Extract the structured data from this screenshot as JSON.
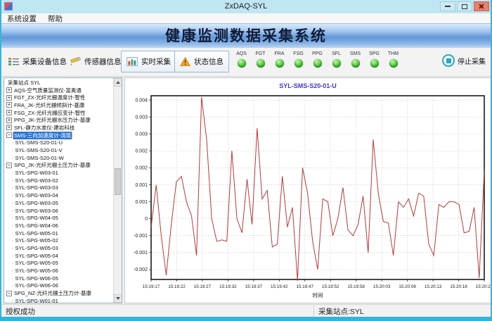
{
  "window": {
    "title": "ZxDAQ-SYL"
  },
  "menu": {
    "items": [
      "系统设置",
      "帮助"
    ]
  },
  "banner": {
    "title": "健康监测数据采集系统"
  },
  "toolbar": {
    "buttons": [
      {
        "label": "采集设备信息"
      },
      {
        "label": "传感器信息"
      },
      {
        "label": "实时采集"
      },
      {
        "label": "状态信息"
      }
    ],
    "channels": [
      "AQS",
      "FGT",
      "FRA",
      "FSG",
      "PPG",
      "SFL",
      "SMS",
      "SPG",
      "THM"
    ],
    "led_color": "#35c135",
    "stop_label": "停止采集"
  },
  "tree": {
    "items": [
      {
        "label": "采集站点 SYL",
        "level": 0,
        "expander": "none"
      },
      {
        "label": "AQS-空气质量监测仪-富奥通",
        "level": 0,
        "expander": "plus"
      },
      {
        "label": "FGT_ZX-光纤光栅温度计-智性",
        "level": 0,
        "expander": "plus"
      },
      {
        "label": "FRA_JK-光纤光栅倾斜计-基康",
        "level": 0,
        "expander": "plus"
      },
      {
        "label": "FSG_ZX-光纤光栅应变计-智性",
        "level": 0,
        "expander": "plus"
      },
      {
        "label": "PPG_JK-光纤光栅水压力计-基康",
        "level": 0,
        "expander": "plus"
      },
      {
        "label": "SFL-静力水准仪-建岩科技",
        "level": 0,
        "expander": "plus"
      },
      {
        "label": "SMS-三向加速度计-清筑",
        "level": 0,
        "expander": "minus",
        "selected": true
      },
      {
        "label": "SYL-SMS-S20-01-U",
        "level": 1
      },
      {
        "label": "SYL-SMS-S20-01-V",
        "level": 1
      },
      {
        "label": "SYL-SMS-S20-01-W",
        "level": 1
      },
      {
        "label": "SPG_JK-光纤光栅土压力计-基康",
        "level": 0,
        "expander": "minus"
      },
      {
        "label": "SYL-SPG-W03-01",
        "level": 1
      },
      {
        "label": "SYL-SPG-W03-02",
        "level": 1
      },
      {
        "label": "SYL-SPG-W03-03",
        "level": 1
      },
      {
        "label": "SYL-SPG-W03-04",
        "level": 1
      },
      {
        "label": "SYL-SPG-W03-05",
        "level": 1
      },
      {
        "label": "SYL-SPG-W03-06",
        "level": 1
      },
      {
        "label": "SYL-SPG-W04-05",
        "level": 1
      },
      {
        "label": "SYL-SPG-W04-06",
        "level": 1
      },
      {
        "label": "SYL-SPG-W05-01",
        "level": 1
      },
      {
        "label": "SYL-SPG-W05-02",
        "level": 1
      },
      {
        "label": "SYL-SPG-W05-03",
        "level": 1
      },
      {
        "label": "SYL-SPG-W05-04",
        "level": 1
      },
      {
        "label": "SYL-SPG-W05-05",
        "level": 1
      },
      {
        "label": "SYL-SPG-W05-06",
        "level": 1
      },
      {
        "label": "SYL-SPG-W06-05",
        "level": 1
      },
      {
        "label": "SYL-SPG-W06-06",
        "level": 1
      },
      {
        "label": "SPG_NZ-光纤光栅土压力计-基康",
        "level": 0,
        "expander": "minus"
      },
      {
        "label": "SYL-SPG-W01-01",
        "level": 1
      }
    ]
  },
  "chart_data": {
    "type": "line",
    "title": "SYL-SMS-S20-01-U",
    "xlabel": "时间",
    "ylabel": "",
    "x_ticks": [
      "15:19:17",
      "15:19:22",
      "15:19:27",
      "15:19:32",
      "15:19:37",
      "15:19:42",
      "15:19:47",
      "15:19:52",
      "15:19:58",
      "15:20:03",
      "15:20:08",
      "15:20:13",
      "15:20:18",
      "15:20:23"
    ],
    "y_tick_labels": [
      "0.004",
      "0.003",
      "0.003",
      "0.002",
      "0.002",
      "0.001",
      "0.001",
      "0",
      "-0.001",
      "-0.001",
      "-0.002"
    ],
    "y_tick_values": [
      0.004,
      0.0034,
      0.0028,
      0.0022,
      0.0016,
      0.001,
      0.0004,
      -0.0002,
      -0.0008,
      -0.0014,
      -0.002
    ],
    "ylim": [
      -0.00235,
      0.00415
    ],
    "grid": true,
    "line_color": "#b23b3b",
    "values": [
      -0.0005,
      0.001,
      -0.0008,
      -0.0022,
      -0.0004,
      0.0011,
      0.0013,
      0.0004,
      -0.0001,
      -0.0015,
      0.0041,
      0.0026,
      -0.0002,
      -0.001,
      -0.00095,
      -0.001,
      0.0022,
      -0.0002,
      -0.0007,
      0.0012,
      -0.0004,
      0.003,
      0.0005,
      0.0008,
      -0.0012,
      -0.0011,
      0.0013,
      -0.0005,
      0.0002,
      -0.0024,
      0.0016,
      0.0007,
      -0.001,
      -0.002,
      0.0005,
      0.0004,
      -0.0008,
      -0.0002,
      0.0009,
      -0.0006,
      -0.0008,
      -0.0004,
      0.0006,
      -0.0014,
      0.0026,
      0.0007,
      -0.0003,
      -0.00035,
      -0.0015,
      0.0004,
      0.0002,
      0.0005,
      -0.0001,
      0.0007,
      0.0006,
      -0.0011,
      -0.0015,
      0.0003,
      0.0002,
      0.0004,
      0.0004,
      0.0003,
      -0.0007,
      -0.00065,
      0.0002,
      -0.0023,
      0.0015
    ]
  },
  "statusbar": {
    "left": "授权成功",
    "right": "采集站点:SYL"
  }
}
